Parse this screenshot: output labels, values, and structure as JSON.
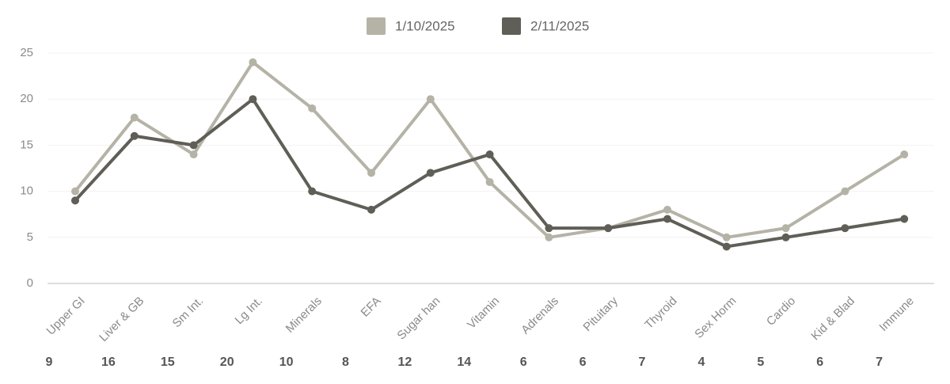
{
  "chart_data": {
    "type": "line",
    "categories": [
      "Upper GI",
      "Liver & GB",
      "Sm Int.",
      "Lg Int.",
      "Minerals",
      "EFA",
      "Sugar han",
      "Vitamin",
      "Adrenals",
      "Pituitary",
      "Thyroid",
      "Sex Horm",
      "Cardio",
      "Kid & Blad",
      "Immune"
    ],
    "series": [
      {
        "name": "1/10/2025",
        "color": "#b5b3a6",
        "values": [
          10,
          18,
          14,
          24,
          19,
          12,
          20,
          11,
          5,
          6,
          8,
          5,
          6,
          10,
          14
        ]
      },
      {
        "name": "2/11/2025",
        "color": "#5f5e57",
        "values": [
          9,
          16,
          15,
          20,
          10,
          8,
          12,
          14,
          6,
          6,
          7,
          4,
          5,
          6,
          7
        ]
      }
    ],
    "ylim": [
      0,
      25
    ],
    "yticks": [
      0,
      5,
      10,
      15,
      20,
      25
    ],
    "grid": true
  }
}
